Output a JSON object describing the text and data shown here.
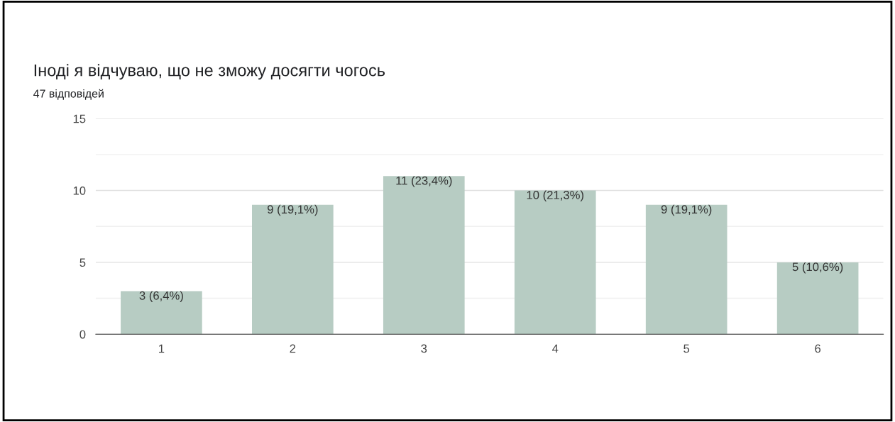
{
  "chart_data": {
    "type": "bar",
    "title": "Іноді я відчуваю, що не зможу досягти чогось",
    "subtitle": "47 відповідей",
    "categories": [
      "1",
      "2",
      "3",
      "4",
      "5",
      "6"
    ],
    "values": [
      3,
      9,
      11,
      10,
      9,
      5
    ],
    "value_labels": [
      "3 (6,4%)",
      "9 (19,1%)",
      "11 (23,4%)",
      "10 (21,3%)",
      "9 (19,1%)",
      "5 (10,6%)"
    ],
    "color": "#b7ccc3",
    "ylim": [
      0,
      15
    ],
    "yticks": [
      0,
      {
        "value": 2.5,
        "label": null
      },
      5,
      {
        "value": 7.5,
        "label": null
      },
      10,
      {
        "value": 12.5,
        "label": null
      },
      15
    ],
    "grid": "y",
    "legend": false
  }
}
